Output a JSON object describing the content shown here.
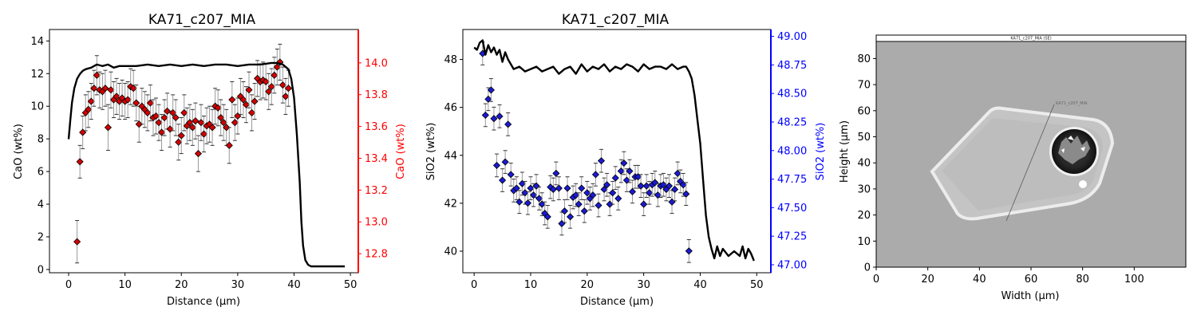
{
  "chart_data": [
    {
      "type": "line+scatter",
      "title": "KA71_c207_MIA",
      "xlabel": "Distance (µm)",
      "ylabel": "CaO (wt%)",
      "ylabel_right": "CaO (wt%)",
      "xlim": [
        -3.4,
        51.4
      ],
      "ylim": [
        -0.2,
        14.7
      ],
      "ylim_right": [
        12.68,
        14.21
      ],
      "xticks": [
        0,
        10,
        20,
        30,
        40,
        50
      ],
      "yticks": [
        0,
        2,
        4,
        6,
        8,
        10,
        12,
        14
      ],
      "yticks_right": [
        12.8,
        13.0,
        13.2,
        13.4,
        13.6,
        13.8,
        14.0
      ],
      "right_axis_color": "#ff0000",
      "marker_color": "#d40000",
      "marker": "diamond",
      "line_color": "#000000",
      "line_axis": "right",
      "points_axis": "left",
      "line": {
        "x": [
          0,
          0.3,
          0.6,
          1,
          1.5,
          2,
          2.5,
          3,
          4,
          5,
          6,
          7,
          8,
          9,
          10,
          12,
          14,
          16,
          18,
          20,
          22,
          24,
          26,
          28,
          30,
          32,
          34,
          36,
          37,
          38,
          39,
          39.5,
          40,
          40.5,
          41,
          41.3,
          41.6,
          42,
          42.5,
          43,
          44,
          45,
          46,
          47,
          48,
          49
        ],
        "y": [
          13.52,
          13.64,
          13.75,
          13.84,
          13.9,
          13.93,
          13.95,
          13.96,
          13.97,
          13.99,
          13.98,
          13.99,
          13.97,
          13.98,
          13.98,
          13.98,
          13.99,
          13.98,
          13.99,
          13.98,
          13.99,
          13.98,
          13.99,
          13.99,
          13.98,
          13.99,
          13.99,
          14.0,
          14.0,
          13.99,
          13.96,
          13.9,
          13.78,
          13.55,
          13.25,
          13.0,
          12.85,
          12.76,
          12.73,
          12.72,
          12.72,
          12.72,
          12.72,
          12.72,
          12.72,
          12.72
        ]
      },
      "points": [
        {
          "x": 1.5,
          "y": 1.7,
          "err": 1.3
        },
        {
          "x": 2.0,
          "y": 6.6,
          "err": 1.0
        },
        {
          "x": 2.5,
          "y": 8.4,
          "err": 1.0
        },
        {
          "x": 3.0,
          "y": 9.6,
          "err": 1.1
        },
        {
          "x": 3.5,
          "y": 9.8,
          "err": 1.1
        },
        {
          "x": 4.0,
          "y": 10.3,
          "err": 1.1
        },
        {
          "x": 4.5,
          "y": 11.1,
          "err": 1.1
        },
        {
          "x": 5.0,
          "y": 11.9,
          "err": 1.2
        },
        {
          "x": 5.5,
          "y": 11.0,
          "err": 1.1
        },
        {
          "x": 6.0,
          "y": 10.9,
          "err": 1.1
        },
        {
          "x": 6.5,
          "y": 11.1,
          "err": 1.1
        },
        {
          "x": 7.0,
          "y": 8.7,
          "err": 1.4
        },
        {
          "x": 7.5,
          "y": 11.0,
          "err": 1.1
        },
        {
          "x": 8.0,
          "y": 10.4,
          "err": 1.1
        },
        {
          "x": 8.5,
          "y": 10.6,
          "err": 1.1
        },
        {
          "x": 9.0,
          "y": 10.3,
          "err": 1.1
        },
        {
          "x": 9.5,
          "y": 10.5,
          "err": 1.1
        },
        {
          "x": 10.0,
          "y": 10.3,
          "err": 1.1
        },
        {
          "x": 10.5,
          "y": 10.4,
          "err": 1.1
        },
        {
          "x": 11.0,
          "y": 11.2,
          "err": 1.1
        },
        {
          "x": 11.5,
          "y": 11.1,
          "err": 1.1
        },
        {
          "x": 12.0,
          "y": 10.2,
          "err": 1.1
        },
        {
          "x": 12.5,
          "y": 8.9,
          "err": 1.1
        },
        {
          "x": 13.0,
          "y": 10.0,
          "err": 1.1
        },
        {
          "x": 13.5,
          "y": 9.8,
          "err": 1.1
        },
        {
          "x": 14.0,
          "y": 9.6,
          "err": 1.1
        },
        {
          "x": 14.5,
          "y": 10.2,
          "err": 1.1
        },
        {
          "x": 15.0,
          "y": 9.3,
          "err": 1.1
        },
        {
          "x": 15.5,
          "y": 9.4,
          "err": 1.1
        },
        {
          "x": 16.0,
          "y": 9.0,
          "err": 1.1
        },
        {
          "x": 16.5,
          "y": 8.4,
          "err": 1.1
        },
        {
          "x": 17.0,
          "y": 9.3,
          "err": 1.1
        },
        {
          "x": 17.5,
          "y": 9.7,
          "err": 1.1
        },
        {
          "x": 18.0,
          "y": 8.6,
          "err": 1.1
        },
        {
          "x": 18.5,
          "y": 9.6,
          "err": 1.1
        },
        {
          "x": 19.0,
          "y": 9.3,
          "err": 1.1
        },
        {
          "x": 19.5,
          "y": 7.8,
          "err": 1.1
        },
        {
          "x": 20.0,
          "y": 8.2,
          "err": 1.1
        },
        {
          "x": 20.5,
          "y": 9.6,
          "err": 1.1
        },
        {
          "x": 21.0,
          "y": 8.8,
          "err": 1.1
        },
        {
          "x": 21.5,
          "y": 9.0,
          "err": 1.1
        },
        {
          "x": 22.0,
          "y": 8.7,
          "err": 1.1
        },
        {
          "x": 22.5,
          "y": 9.1,
          "err": 1.1
        },
        {
          "x": 23.0,
          "y": 7.1,
          "err": 1.1
        },
        {
          "x": 23.5,
          "y": 9.0,
          "err": 1.1
        },
        {
          "x": 24.0,
          "y": 8.3,
          "err": 1.1
        },
        {
          "x": 24.5,
          "y": 8.8,
          "err": 1.1
        },
        {
          "x": 25.0,
          "y": 8.9,
          "err": 1.1
        },
        {
          "x": 25.5,
          "y": 8.7,
          "err": 1.1
        },
        {
          "x": 26.0,
          "y": 10.0,
          "err": 1.1
        },
        {
          "x": 26.5,
          "y": 9.9,
          "err": 1.1
        },
        {
          "x": 27.0,
          "y": 9.3,
          "err": 1.1
        },
        {
          "x": 27.5,
          "y": 9.0,
          "err": 1.1
        },
        {
          "x": 28.0,
          "y": 8.7,
          "err": 1.1
        },
        {
          "x": 28.5,
          "y": 7.6,
          "err": 1.1
        },
        {
          "x": 29.0,
          "y": 10.4,
          "err": 1.1
        },
        {
          "x": 29.5,
          "y": 9.0,
          "err": 1.1
        },
        {
          "x": 30.0,
          "y": 9.4,
          "err": 1.1
        },
        {
          "x": 30.5,
          "y": 10.6,
          "err": 1.1
        },
        {
          "x": 31.0,
          "y": 10.4,
          "err": 1.1
        },
        {
          "x": 31.5,
          "y": 10.1,
          "err": 1.1
        },
        {
          "x": 32.0,
          "y": 11.0,
          "err": 1.1
        },
        {
          "x": 32.5,
          "y": 9.6,
          "err": 1.1
        },
        {
          "x": 33.0,
          "y": 10.3,
          "err": 1.1
        },
        {
          "x": 33.5,
          "y": 11.7,
          "err": 1.1
        },
        {
          "x": 34.0,
          "y": 11.5,
          "err": 1.1
        },
        {
          "x": 34.5,
          "y": 11.6,
          "err": 1.1
        },
        {
          "x": 35.0,
          "y": 11.5,
          "err": 1.1
        },
        {
          "x": 35.5,
          "y": 10.9,
          "err": 1.1
        },
        {
          "x": 36.0,
          "y": 11.2,
          "err": 1.1
        },
        {
          "x": 36.5,
          "y": 11.9,
          "err": 1.1
        },
        {
          "x": 37.0,
          "y": 12.4,
          "err": 1.1
        },
        {
          "x": 37.5,
          "y": 12.7,
          "err": 1.1
        },
        {
          "x": 38.0,
          "y": 11.3,
          "err": 1.1
        },
        {
          "x": 38.5,
          "y": 10.6,
          "err": 1.1
        },
        {
          "x": 39.0,
          "y": 11.1,
          "err": 1.1
        }
      ]
    },
    {
      "type": "line+scatter",
      "title": "KA71_c207_MIA",
      "xlabel": "Distance (µm)",
      "ylabel": "SiO2 (wt%)",
      "ylabel_right": "SiO2 (wt%)",
      "xlim": [
        -2.0,
        52.5
      ],
      "ylim": [
        39.1,
        49.25
      ],
      "ylim_right": [
        46.93,
        49.06
      ],
      "xticks": [
        0,
        10,
        20,
        30,
        40,
        50
      ],
      "yticks": [
        40,
        42,
        44,
        46,
        48
      ],
      "yticks_right": [
        47.0,
        47.25,
        47.5,
        47.75,
        48.0,
        48.25,
        48.5,
        48.75,
        49.0
      ],
      "right_axis_color": "#0000ff",
      "marker_color": "#1a1ad4",
      "marker": "diamond",
      "line_color": "#000000",
      "line_axis": "left",
      "points_axis": "right",
      "line": {
        "x": [
          0,
          0.5,
          1,
          1.5,
          2,
          2.5,
          3,
          3.5,
          4,
          4.5,
          5,
          5.5,
          6,
          6.5,
          7,
          8,
          9,
          10,
          11,
          12,
          13,
          14,
          15,
          16,
          17,
          18,
          19,
          20,
          21,
          22,
          23,
          24,
          25,
          26,
          27,
          28,
          29,
          30,
          31,
          32,
          33,
          34,
          35,
          36,
          37,
          37.5,
          38,
          38.5,
          39,
          39.5,
          40,
          40.5,
          41,
          41.5,
          42,
          42.5,
          43,
          43.5,
          44,
          45,
          46,
          47,
          47.5,
          48,
          48.5,
          49,
          49.5
        ],
        "y": [
          48.5,
          48.4,
          48.7,
          48.8,
          48.2,
          48.6,
          48.3,
          48.5,
          48.2,
          48.4,
          47.9,
          48.3,
          48.0,
          47.8,
          47.6,
          47.7,
          47.5,
          47.6,
          47.7,
          47.5,
          47.6,
          47.7,
          47.4,
          47.6,
          47.7,
          47.4,
          47.8,
          47.5,
          47.7,
          47.6,
          47.8,
          47.5,
          47.7,
          47.6,
          47.8,
          47.7,
          47.5,
          47.8,
          47.6,
          47.7,
          47.7,
          47.6,
          47.8,
          47.6,
          47.7,
          47.7,
          47.5,
          47.2,
          46.5,
          45.5,
          44.5,
          43.0,
          41.5,
          40.6,
          40.1,
          39.7,
          40.2,
          39.8,
          40.1,
          39.8,
          40.0,
          39.8,
          40.2,
          39.7,
          40.1,
          39.9,
          39.6
        ]
      },
      "points": [
        {
          "x": 1.5,
          "y": 48.85,
          "err": 0.1
        },
        {
          "x": 2.0,
          "y": 48.31,
          "err": 0.1
        },
        {
          "x": 2.5,
          "y": 48.45,
          "err": 0.1
        },
        {
          "x": 3.0,
          "y": 48.53,
          "err": 0.1
        },
        {
          "x": 3.5,
          "y": 48.28,
          "err": 0.1
        },
        {
          "x": 4.0,
          "y": 47.87,
          "err": 0.1
        },
        {
          "x": 4.5,
          "y": 48.3,
          "err": 0.1
        },
        {
          "x": 5.0,
          "y": 47.74,
          "err": 0.1
        },
        {
          "x": 5.5,
          "y": 47.9,
          "err": 0.1
        },
        {
          "x": 6.0,
          "y": 48.23,
          "err": 0.1
        },
        {
          "x": 6.5,
          "y": 47.79,
          "err": 0.1
        },
        {
          "x": 7.0,
          "y": 47.65,
          "err": 0.1
        },
        {
          "x": 7.5,
          "y": 47.67,
          "err": 0.1
        },
        {
          "x": 8.0,
          "y": 47.55,
          "err": 0.1
        },
        {
          "x": 8.5,
          "y": 47.71,
          "err": 0.1
        },
        {
          "x": 9.0,
          "y": 47.63,
          "err": 0.1
        },
        {
          "x": 9.5,
          "y": 47.54,
          "err": 0.1
        },
        {
          "x": 10.0,
          "y": 47.67,
          "err": 0.1
        },
        {
          "x": 10.5,
          "y": 47.61,
          "err": 0.1
        },
        {
          "x": 11.0,
          "y": 47.69,
          "err": 0.1
        },
        {
          "x": 11.5,
          "y": 47.58,
          "err": 0.1
        },
        {
          "x": 12.0,
          "y": 47.53,
          "err": 0.1
        },
        {
          "x": 12.5,
          "y": 47.45,
          "err": 0.1
        },
        {
          "x": 13.0,
          "y": 47.42,
          "err": 0.1
        },
        {
          "x": 13.5,
          "y": 47.68,
          "err": 0.1
        },
        {
          "x": 14.0,
          "y": 47.66,
          "err": 0.1
        },
        {
          "x": 14.5,
          "y": 47.8,
          "err": 0.1
        },
        {
          "x": 15.0,
          "y": 47.67,
          "err": 0.1
        },
        {
          "x": 15.5,
          "y": 47.36,
          "err": 0.1
        },
        {
          "x": 16.0,
          "y": 47.47,
          "err": 0.1
        },
        {
          "x": 16.5,
          "y": 47.67,
          "err": 0.1
        },
        {
          "x": 17.0,
          "y": 47.42,
          "err": 0.1
        },
        {
          "x": 17.5,
          "y": 47.59,
          "err": 0.1
        },
        {
          "x": 18.0,
          "y": 47.61,
          "err": 0.1
        },
        {
          "x": 18.5,
          "y": 47.53,
          "err": 0.1
        },
        {
          "x": 19.0,
          "y": 47.67,
          "err": 0.1
        },
        {
          "x": 19.5,
          "y": 47.47,
          "err": 0.1
        },
        {
          "x": 20.0,
          "y": 47.63,
          "err": 0.1
        },
        {
          "x": 20.5,
          "y": 47.58,
          "err": 0.1
        },
        {
          "x": 21.0,
          "y": 47.61,
          "err": 0.1
        },
        {
          "x": 21.5,
          "y": 47.79,
          "err": 0.1
        },
        {
          "x": 22.0,
          "y": 47.52,
          "err": 0.1
        },
        {
          "x": 22.5,
          "y": 47.91,
          "err": 0.1
        },
        {
          "x": 23.0,
          "y": 47.66,
          "err": 0.1
        },
        {
          "x": 23.5,
          "y": 47.7,
          "err": 0.1
        },
        {
          "x": 24.0,
          "y": 47.53,
          "err": 0.1
        },
        {
          "x": 24.5,
          "y": 47.63,
          "err": 0.1
        },
        {
          "x": 25.0,
          "y": 47.76,
          "err": 0.1
        },
        {
          "x": 25.5,
          "y": 47.58,
          "err": 0.1
        },
        {
          "x": 26.0,
          "y": 47.82,
          "err": 0.1
        },
        {
          "x": 26.5,
          "y": 47.89,
          "err": 0.1
        },
        {
          "x": 27.0,
          "y": 47.74,
          "err": 0.1
        },
        {
          "x": 27.5,
          "y": 47.82,
          "err": 0.1
        },
        {
          "x": 28.0,
          "y": 47.64,
          "err": 0.1
        },
        {
          "x": 28.5,
          "y": 47.77,
          "err": 0.1
        },
        {
          "x": 29.0,
          "y": 47.77,
          "err": 0.1
        },
        {
          "x": 29.5,
          "y": 47.69,
          "err": 0.1
        },
        {
          "x": 30.0,
          "y": 47.53,
          "err": 0.1
        },
        {
          "x": 30.5,
          "y": 47.69,
          "err": 0.1
        },
        {
          "x": 31.0,
          "y": 47.63,
          "err": 0.1
        },
        {
          "x": 31.5,
          "y": 47.7,
          "err": 0.1
        },
        {
          "x": 32.0,
          "y": 47.72,
          "err": 0.1
        },
        {
          "x": 32.5,
          "y": 47.61,
          "err": 0.1
        },
        {
          "x": 33.0,
          "y": 47.69,
          "err": 0.1
        },
        {
          "x": 33.5,
          "y": 47.7,
          "err": 0.1
        },
        {
          "x": 34.0,
          "y": 47.66,
          "err": 0.1
        },
        {
          "x": 34.5,
          "y": 47.69,
          "err": 0.1
        },
        {
          "x": 35.0,
          "y": 47.55,
          "err": 0.1
        },
        {
          "x": 35.5,
          "y": 47.66,
          "err": 0.1
        },
        {
          "x": 36.0,
          "y": 47.8,
          "err": 0.1
        },
        {
          "x": 36.5,
          "y": 47.73,
          "err": 0.1
        },
        {
          "x": 37.0,
          "y": 47.7,
          "err": 0.1
        },
        {
          "x": 37.5,
          "y": 47.62,
          "err": 0.1
        },
        {
          "x": 38.0,
          "y": 47.12,
          "err": 0.1
        }
      ]
    },
    {
      "type": "image",
      "xlabel": "Width (µm)",
      "ylabel": "Height (µm)",
      "xlim": [
        0,
        120
      ],
      "ylim": [
        0,
        89
      ],
      "xticks": [
        0,
        20,
        40,
        60,
        80,
        100
      ],
      "yticks": [
        0,
        10,
        20,
        30,
        40,
        50,
        60,
        70,
        80
      ],
      "image_caption": "KA71_c207_MIA (SE)",
      "image_label": "KA71_c207_MIA",
      "background_color": "#ababab",
      "crystal_color": "#c4c4c4"
    }
  ]
}
